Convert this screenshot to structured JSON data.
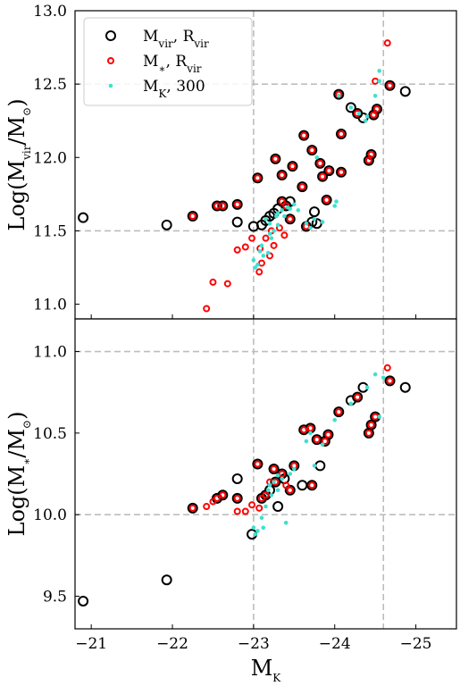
{
  "chart_data": [
    {
      "type": "scatter",
      "panel": "top",
      "ylabel": "Log(M_vir/M_⊙)",
      "ylabel_parts": {
        "pre": "Log(M",
        "sub": "vir",
        "mid": "/M",
        "sub2": "⊙",
        "post": ")"
      },
      "xlim": [
        -20.8,
        -25.5
      ],
      "ylim": [
        10.9,
        13.0
      ],
      "yticks": [
        11.0,
        11.5,
        12.0,
        12.5,
        13.0
      ],
      "ytick_labels": [
        "11.0",
        "11.5",
        "12.0",
        "12.5",
        "13.0"
      ],
      "hlines": [
        11.5,
        12.5
      ],
      "vlines": [
        -23.0,
        -24.6
      ],
      "grid": false,
      "legend_position": "top-left",
      "legend": [
        {
          "key": "mvir",
          "pre": "M",
          "sub": "vir",
          "mid": ", R",
          "sub2": "vir",
          "post": ""
        },
        {
          "key": "mstar",
          "pre": "M",
          "sub": "∗",
          "mid": ", R",
          "sub2": "vir",
          "post": ""
        },
        {
          "key": "mk300",
          "pre": "M",
          "sub": "K",
          "mid": ", 300",
          "sub2": "",
          "post": ""
        }
      ],
      "series": [
        {
          "key": "mvir",
          "color": "#000000",
          "marker": "open-circle-large",
          "points": [
            [
              -20.9,
              11.59
            ],
            [
              -21.93,
              11.54
            ],
            [
              -22.25,
              11.6
            ],
            [
              -22.55,
              11.67
            ],
            [
              -22.62,
              11.67
            ],
            [
              -22.8,
              11.68
            ],
            [
              -22.8,
              11.56
            ],
            [
              -23.0,
              11.53
            ],
            [
              -23.05,
              11.86
            ],
            [
              -23.1,
              11.54
            ],
            [
              -23.15,
              11.57
            ],
            [
              -23.2,
              11.6
            ],
            [
              -23.25,
              11.62
            ],
            [
              -23.27,
              11.99
            ],
            [
              -23.3,
              11.65
            ],
            [
              -23.35,
              11.7
            ],
            [
              -23.35,
              11.88
            ],
            [
              -23.4,
              11.67
            ],
            [
              -23.45,
              11.58
            ],
            [
              -23.45,
              11.7
            ],
            [
              -23.48,
              11.94
            ],
            [
              -23.6,
              11.8
            ],
            [
              -23.62,
              12.15
            ],
            [
              -23.65,
              11.53
            ],
            [
              -23.72,
              11.56
            ],
            [
              -23.72,
              12.05
            ],
            [
              -23.75,
              11.63
            ],
            [
              -23.78,
              11.55
            ],
            [
              -23.82,
              11.96
            ],
            [
              -23.85,
              11.87
            ],
            [
              -23.9,
              11.71
            ],
            [
              -23.93,
              11.91
            ],
            [
              -24.05,
              12.43
            ],
            [
              -24.08,
              11.9
            ],
            [
              -24.08,
              12.16
            ],
            [
              -24.2,
              12.34
            ],
            [
              -24.28,
              12.3
            ],
            [
              -24.35,
              12.27
            ],
            [
              -24.42,
              11.98
            ],
            [
              -24.45,
              12.02
            ],
            [
              -24.48,
              12.29
            ],
            [
              -24.52,
              12.33
            ],
            [
              -24.68,
              12.49
            ],
            [
              -24.87,
              12.45
            ]
          ]
        },
        {
          "key": "mstar",
          "color": "#ff0000",
          "marker": "open-circle-small",
          "points": [
            [
              -22.25,
              11.6
            ],
            [
              -22.42,
              10.97
            ],
            [
              -22.5,
              11.15
            ],
            [
              -22.55,
              11.67
            ],
            [
              -22.62,
              11.67
            ],
            [
              -22.68,
              11.14
            ],
            [
              -22.8,
              11.68
            ],
            [
              -22.8,
              11.37
            ],
            [
              -22.9,
              11.39
            ],
            [
              -22.98,
              11.45
            ],
            [
              -23.05,
              11.86
            ],
            [
              -23.07,
              11.22
            ],
            [
              -23.08,
              11.38
            ],
            [
              -23.1,
              11.28
            ],
            [
              -23.15,
              11.45
            ],
            [
              -23.2,
              11.33
            ],
            [
              -23.22,
              11.5
            ],
            [
              -23.25,
              11.4
            ],
            [
              -23.27,
              11.99
            ],
            [
              -23.32,
              11.52
            ],
            [
              -23.35,
              11.7
            ],
            [
              -23.35,
              11.88
            ],
            [
              -23.38,
              11.47
            ],
            [
              -23.4,
              11.67
            ],
            [
              -23.45,
              11.58
            ],
            [
              -23.48,
              11.94
            ],
            [
              -23.6,
              11.8
            ],
            [
              -23.62,
              12.15
            ],
            [
              -23.65,
              11.53
            ],
            [
              -23.72,
              12.05
            ],
            [
              -23.82,
              11.96
            ],
            [
              -23.85,
              11.87
            ],
            [
              -23.9,
              11.71
            ],
            [
              -23.93,
              11.91
            ],
            [
              -24.05,
              12.43
            ],
            [
              -24.08,
              11.9
            ],
            [
              -24.08,
              12.16
            ],
            [
              -24.28,
              12.3
            ],
            [
              -24.42,
              11.98
            ],
            [
              -24.45,
              12.02
            ],
            [
              -24.48,
              12.29
            ],
            [
              -24.52,
              12.33
            ],
            [
              -24.5,
              12.52
            ],
            [
              -24.65,
              12.78
            ],
            [
              -24.68,
              12.49
            ]
          ]
        },
        {
          "key": "mk300",
          "color": "#40e0d0",
          "marker": "dot",
          "points": [
            [
              -23.0,
              11.3
            ],
            [
              -23.02,
              11.25
            ],
            [
              -23.05,
              11.27
            ],
            [
              -23.08,
              11.36
            ],
            [
              -23.1,
              11.4
            ],
            [
              -23.12,
              11.33
            ],
            [
              -23.15,
              11.58
            ],
            [
              -23.18,
              11.35
            ],
            [
              -23.2,
              11.55
            ],
            [
              -23.22,
              11.45
            ],
            [
              -23.25,
              11.5
            ],
            [
              -23.28,
              11.6
            ],
            [
              -23.3,
              11.62
            ],
            [
              -23.35,
              11.64
            ],
            [
              -23.38,
              11.6
            ],
            [
              -23.42,
              11.66
            ],
            [
              -23.45,
              11.65
            ],
            [
              -23.5,
              11.68
            ],
            [
              -23.55,
              11.64
            ],
            [
              -23.7,
              11.52
            ],
            [
              -23.75,
              11.58
            ],
            [
              -23.78,
              12.0
            ],
            [
              -23.85,
              11.56
            ],
            [
              -24.0,
              11.67
            ],
            [
              -24.02,
              11.7
            ],
            [
              -24.05,
              12.42
            ],
            [
              -24.2,
              12.34
            ],
            [
              -24.3,
              12.3
            ],
            [
              -24.38,
              12.25
            ],
            [
              -24.5,
              12.42
            ],
            [
              -24.55,
              12.59
            ],
            [
              -24.55,
              12.52
            ],
            [
              -24.4,
              12.28
            ],
            [
              -23.65,
              11.55
            ],
            [
              -23.3,
              11.54
            ],
            [
              -23.2,
              11.48
            ]
          ]
        }
      ]
    },
    {
      "type": "scatter",
      "panel": "bottom",
      "xlabel": "M_K",
      "xlabel_parts": {
        "pre": "M",
        "sub": "K"
      },
      "ylabel": "Log(M_*/M_⊙)",
      "ylabel_parts": {
        "pre": "Log(M",
        "sub": "∗",
        "mid": "/M",
        "sub2": "⊙",
        "post": ")"
      },
      "xlim": [
        -20.8,
        -25.5
      ],
      "ylim": [
        9.3,
        11.2
      ],
      "xticks": [
        -21,
        -22,
        -23,
        -24,
        -25
      ],
      "xtick_labels": [
        "−21",
        "−22",
        "−23",
        "−24",
        "−25"
      ],
      "yticks": [
        9.5,
        10.0,
        10.5,
        11.0
      ],
      "ytick_labels": [
        "9.5",
        "10.0",
        "10.5",
        "11.0"
      ],
      "hlines": [
        10.0,
        11.0
      ],
      "vlines": [
        -23.0,
        -24.6
      ],
      "grid": false,
      "series": [
        {
          "key": "mvir",
          "color": "#000000",
          "marker": "open-circle-large",
          "points": [
            [
              -20.9,
              9.47
            ],
            [
              -21.93,
              9.6
            ],
            [
              -22.25,
              10.04
            ],
            [
              -22.55,
              10.1
            ],
            [
              -22.62,
              10.12
            ],
            [
              -22.8,
              10.1
            ],
            [
              -22.8,
              10.22
            ],
            [
              -22.98,
              9.88
            ],
            [
              -23.05,
              10.31
            ],
            [
              -23.1,
              10.1
            ],
            [
              -23.15,
              10.12
            ],
            [
              -23.2,
              10.15
            ],
            [
              -23.25,
              10.28
            ],
            [
              -23.27,
              10.2
            ],
            [
              -23.3,
              10.05
            ],
            [
              -23.35,
              10.25
            ],
            [
              -23.38,
              10.22
            ],
            [
              -23.45,
              10.15
            ],
            [
              -23.5,
              10.3
            ],
            [
              -23.6,
              10.18
            ],
            [
              -23.62,
              10.52
            ],
            [
              -23.7,
              10.53
            ],
            [
              -23.72,
              10.18
            ],
            [
              -23.78,
              10.46
            ],
            [
              -23.82,
              10.3
            ],
            [
              -23.88,
              10.45
            ],
            [
              -23.92,
              10.49
            ],
            [
              -24.05,
              10.63
            ],
            [
              -24.2,
              10.7
            ],
            [
              -24.28,
              10.72
            ],
            [
              -24.35,
              10.78
            ],
            [
              -24.42,
              10.5
            ],
            [
              -24.45,
              10.55
            ],
            [
              -24.5,
              10.6
            ],
            [
              -24.68,
              10.82
            ],
            [
              -24.87,
              10.78
            ]
          ]
        },
        {
          "key": "mstar",
          "color": "#ff0000",
          "marker": "open-circle-small",
          "points": [
            [
              -22.25,
              10.04
            ],
            [
              -22.42,
              10.05
            ],
            [
              -22.5,
              10.08
            ],
            [
              -22.55,
              10.1
            ],
            [
              -22.62,
              10.12
            ],
            [
              -22.8,
              10.1
            ],
            [
              -22.8,
              10.02
            ],
            [
              -22.9,
              10.02
            ],
            [
              -22.98,
              10.06
            ],
            [
              -23.05,
              10.31
            ],
            [
              -23.07,
              10.04
            ],
            [
              -23.1,
              10.1
            ],
            [
              -23.15,
              10.12
            ],
            [
              -23.2,
              10.2
            ],
            [
              -23.25,
              10.28
            ],
            [
              -23.27,
              10.2
            ],
            [
              -23.35,
              10.25
            ],
            [
              -23.4,
              10.18
            ],
            [
              -23.45,
              10.15
            ],
            [
              -23.5,
              10.3
            ],
            [
              -23.62,
              10.52
            ],
            [
              -23.7,
              10.53
            ],
            [
              -23.72,
              10.18
            ],
            [
              -23.78,
              10.46
            ],
            [
              -23.88,
              10.45
            ],
            [
              -23.92,
              10.49
            ],
            [
              -24.05,
              10.63
            ],
            [
              -24.28,
              10.72
            ],
            [
              -24.42,
              10.5
            ],
            [
              -24.45,
              10.55
            ],
            [
              -24.5,
              10.6
            ],
            [
              -24.65,
              10.9
            ],
            [
              -24.68,
              10.82
            ]
          ]
        },
        {
          "key": "mk300",
          "color": "#40e0d0",
          "marker": "dot",
          "points": [
            [
              -23.0,
              9.92
            ],
            [
              -23.02,
              9.88
            ],
            [
              -23.05,
              9.9
            ],
            [
              -23.1,
              9.98
            ],
            [
              -23.12,
              9.92
            ],
            [
              -23.15,
              10.05
            ],
            [
              -23.18,
              10.15
            ],
            [
              -23.22,
              10.12
            ],
            [
              -23.25,
              10.2
            ],
            [
              -23.3,
              10.24
            ],
            [
              -23.35,
              10.22
            ],
            [
              -23.4,
              9.95
            ],
            [
              -23.45,
              10.25
            ],
            [
              -23.5,
              10.28
            ],
            [
              -23.7,
              10.5
            ],
            [
              -23.75,
              10.3
            ],
            [
              -23.85,
              10.43
            ],
            [
              -24.0,
              10.58
            ],
            [
              -24.2,
              10.68
            ],
            [
              -24.4,
              10.78
            ],
            [
              -24.5,
              10.86
            ],
            [
              -24.6,
              10.84
            ],
            [
              -24.55,
              10.6
            ],
            [
              -23.65,
              10.45
            ],
            [
              -23.3,
              10.15
            ],
            [
              -23.2,
              10.18
            ]
          ]
        }
      ]
    }
  ]
}
